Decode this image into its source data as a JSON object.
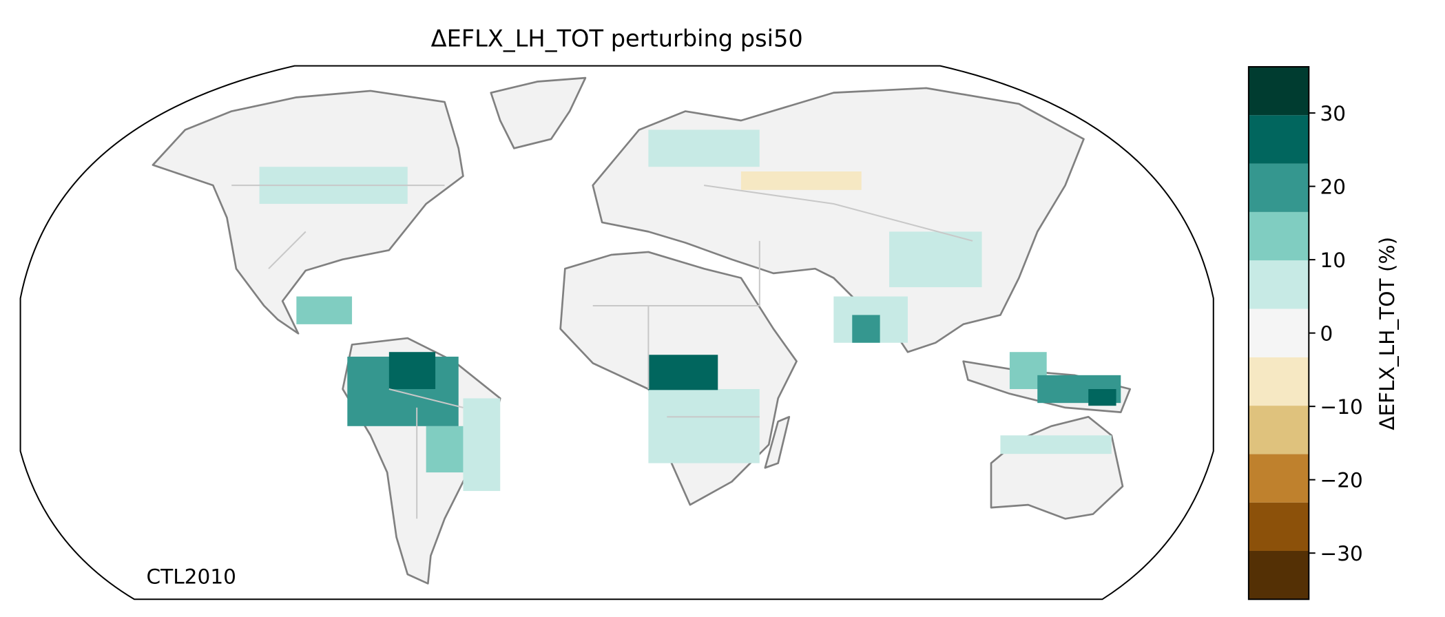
{
  "title": "ΔEFLX_LH_TOT perturbing psi50",
  "annotation": "CTL2010",
  "colorbar": {
    "label": "ΔEFLX_LH_TOT (%)",
    "lim": [
      -36.3,
      36.3
    ],
    "bounds": [
      -36.3,
      -29.7,
      -23.1,
      -16.5,
      -9.9,
      -3.3,
      3.3,
      9.9,
      16.5,
      23.1,
      29.7,
      36.3
    ],
    "colors": [
      "#543005",
      "#8c510a",
      "#bf812d",
      "#dfc27d",
      "#f6e8c3",
      "#f5f5f5",
      "#c7eae5",
      "#80cdc1",
      "#35978f",
      "#01665e",
      "#003c30"
    ],
    "ticks": [
      {
        "value": -30,
        "label": "−30"
      },
      {
        "value": -20,
        "label": "−20"
      },
      {
        "value": -10,
        "label": "−10"
      },
      0,
      10,
      20,
      30
    ]
  }
}
